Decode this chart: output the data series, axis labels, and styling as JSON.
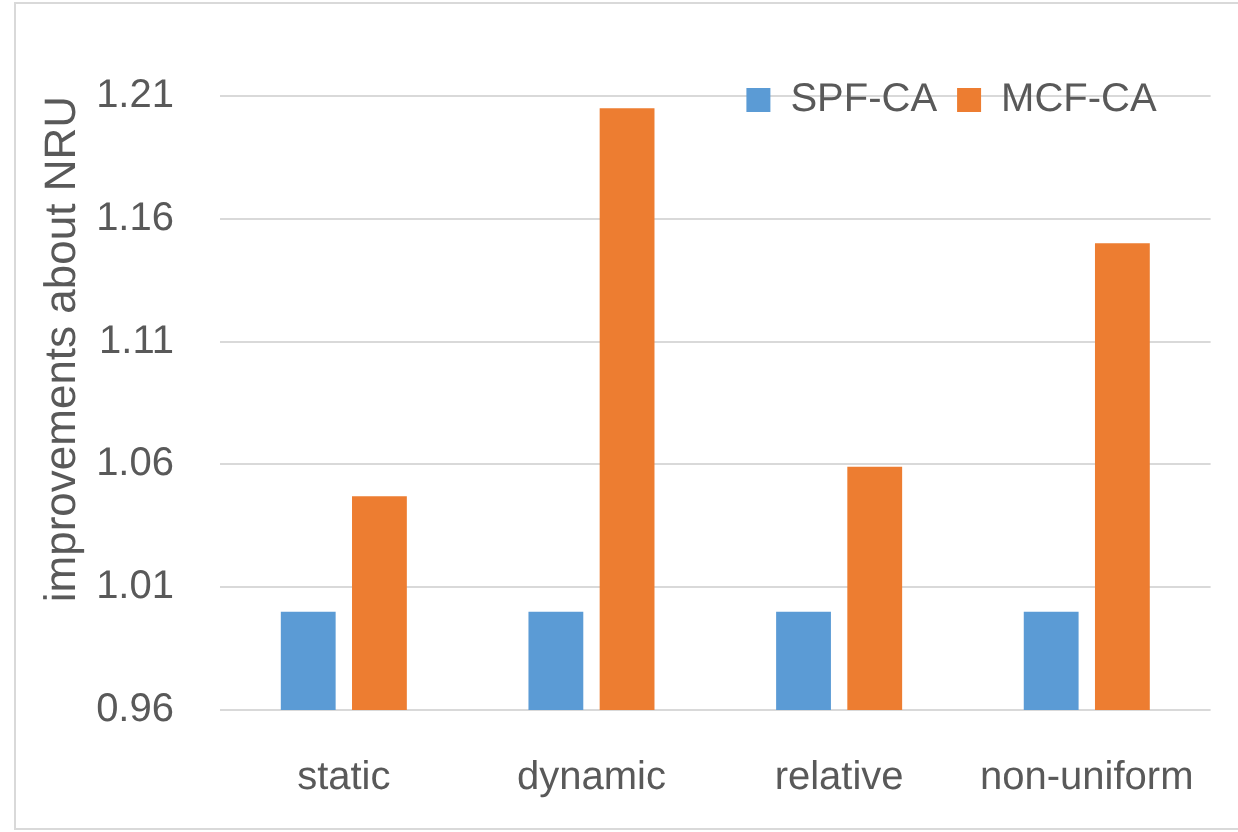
{
  "chart_data": {
    "type": "bar",
    "ylabel": "improvements about NRU",
    "categories": [
      "static",
      "dynamic",
      "relative",
      "non-uniform"
    ],
    "series": [
      {
        "name": "SPF-CA",
        "color": "#5b9bd5",
        "values": [
          1.0,
          1.0,
          1.0,
          1.0
        ]
      },
      {
        "name": "MCF-CA",
        "color": "#ed7d31",
        "values": [
          1.047,
          1.205,
          1.059,
          1.15
        ]
      }
    ],
    "ylim": [
      0.96,
      1.21
    ],
    "yticks": [
      0.96,
      1.01,
      1.06,
      1.11,
      1.16,
      1.21
    ],
    "grid": "y",
    "legend": "top right"
  }
}
